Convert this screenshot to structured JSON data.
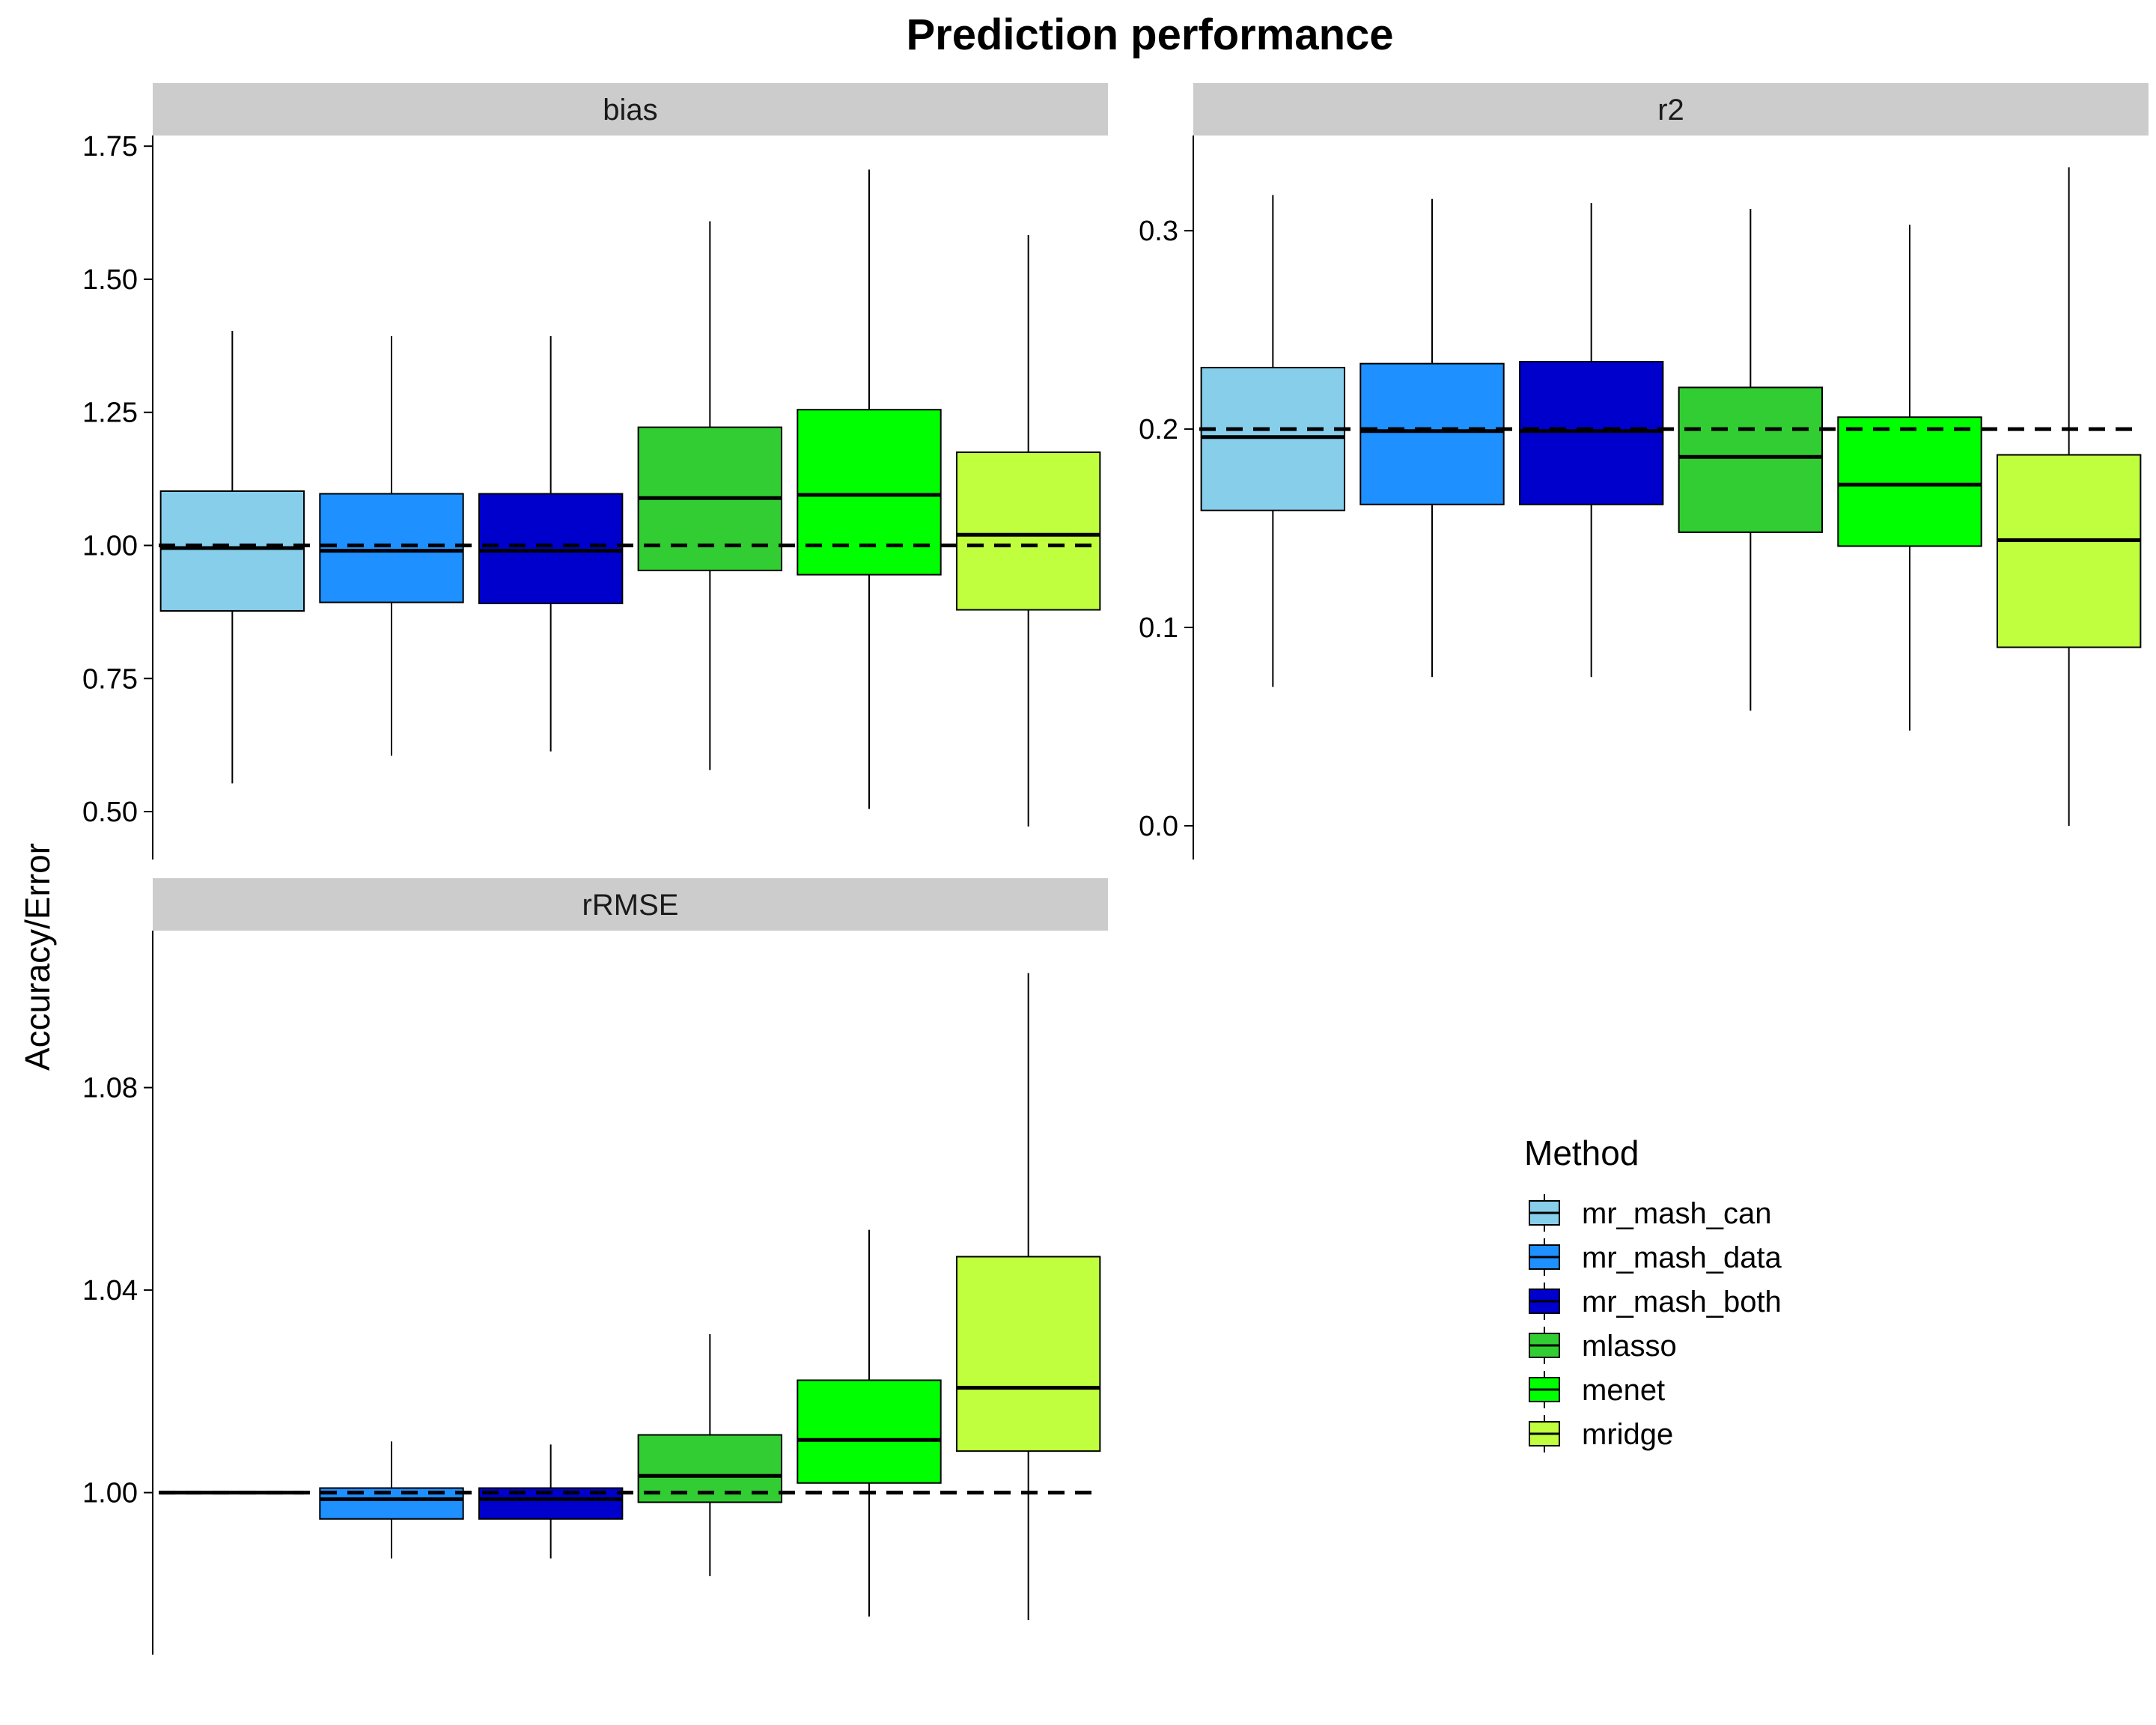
{
  "title": "Prediction performance",
  "ylabel": "Accuracy/Error",
  "legend": {
    "title": "Method"
  },
  "colors": {
    "mr_mash_can": "#87ceeb",
    "mr_mash_data": "#1e90ff",
    "mr_mash_both": "#0000cd",
    "mlasso": "#32cd32",
    "menet": "#00ff00",
    "mridge": "#c0ff3e",
    "strip": "#cccccc"
  },
  "chart_data": {
    "type": "boxplot",
    "methods": [
      "mr_mash_can",
      "mr_mash_data",
      "mr_mash_both",
      "mlasso",
      "menet",
      "mridge"
    ],
    "panels": [
      {
        "name": "bias",
        "reference_line": 1.0,
        "ylim": [
          0.41,
          1.77
        ],
        "yticks": [
          0.5,
          0.75,
          1.0,
          1.25,
          1.5,
          1.75
        ],
        "yticklabels": [
          "0.50",
          "0.75",
          "1.00",
          "1.25",
          "1.50",
          "1.75"
        ],
        "boxes": [
          {
            "method": "mr_mash_can",
            "lower_whisker": 0.553,
            "q1": 0.877,
            "median": 0.995,
            "q3": 1.102,
            "upper_whisker": 1.403
          },
          {
            "method": "mr_mash_data",
            "lower_whisker": 0.605,
            "q1": 0.893,
            "median": 0.99,
            "q3": 1.097,
            "upper_whisker": 1.393
          },
          {
            "method": "mr_mash_both",
            "lower_whisker": 0.613,
            "q1": 0.891,
            "median": 0.99,
            "q3": 1.097,
            "upper_whisker": 1.393
          },
          {
            "method": "mlasso",
            "lower_whisker": 0.578,
            "q1": 0.953,
            "median": 1.089,
            "q3": 1.222,
            "upper_whisker": 1.609
          },
          {
            "method": "menet",
            "lower_whisker": 0.505,
            "q1": 0.945,
            "median": 1.095,
            "q3": 1.255,
            "upper_whisker": 1.706
          },
          {
            "method": "mridge",
            "lower_whisker": 0.472,
            "q1": 0.879,
            "median": 1.02,
            "q3": 1.175,
            "upper_whisker": 1.583
          }
        ]
      },
      {
        "name": "r2",
        "reference_line": 0.2,
        "ylim": [
          -0.017,
          0.348
        ],
        "yticks": [
          0.0,
          0.1,
          0.2,
          0.3
        ],
        "yticklabels": [
          "0.0",
          "0.1",
          "0.2",
          "0.3"
        ],
        "boxes": [
          {
            "method": "mr_mash_can",
            "lower_whisker": 0.07,
            "q1": 0.159,
            "median": 0.196,
            "q3": 0.231,
            "upper_whisker": 0.318
          },
          {
            "method": "mr_mash_data",
            "lower_whisker": 0.075,
            "q1": 0.162,
            "median": 0.199,
            "q3": 0.233,
            "upper_whisker": 0.316
          },
          {
            "method": "mr_mash_both",
            "lower_whisker": 0.075,
            "q1": 0.162,
            "median": 0.199,
            "q3": 0.234,
            "upper_whisker": 0.314
          },
          {
            "method": "mlasso",
            "lower_whisker": 0.058,
            "q1": 0.148,
            "median": 0.186,
            "q3": 0.221,
            "upper_whisker": 0.311
          },
          {
            "method": "menet",
            "lower_whisker": 0.048,
            "q1": 0.141,
            "median": 0.172,
            "q3": 0.206,
            "upper_whisker": 0.303
          },
          {
            "method": "mridge",
            "lower_whisker": 0.0,
            "q1": 0.09,
            "median": 0.144,
            "q3": 0.187,
            "upper_whisker": 0.332
          }
        ]
      },
      {
        "name": "rRMSE",
        "reference_line": 1.0,
        "ylim": [
          0.968,
          1.111
        ],
        "yticks": [
          1.0,
          1.04,
          1.08
        ],
        "yticklabels": [
          "1.00",
          "1.04",
          "1.08"
        ],
        "boxes": [
          {
            "method": "mr_mash_can",
            "lower_whisker": 1.0,
            "q1": 1.0,
            "median": 1.0,
            "q3": 1.0,
            "upper_whisker": 1.0
          },
          {
            "method": "mr_mash_data",
            "lower_whisker": 0.987,
            "q1": 0.9948,
            "median": 0.9987,
            "q3": 1.0009,
            "upper_whisker": 1.0101
          },
          {
            "method": "mr_mash_both",
            "lower_whisker": 0.987,
            "q1": 0.9948,
            "median": 0.9987,
            "q3": 1.0009,
            "upper_whisker": 1.0095
          },
          {
            "method": "mlasso",
            "lower_whisker": 0.9835,
            "q1": 0.9981,
            "median": 1.0033,
            "q3": 1.0114,
            "upper_whisker": 1.0313
          },
          {
            "method": "menet",
            "lower_whisker": 0.9755,
            "q1": 1.0019,
            "median": 1.0104,
            "q3": 1.0222,
            "upper_whisker": 1.0519
          },
          {
            "method": "mridge",
            "lower_whisker": 0.9748,
            "q1": 1.0082,
            "median": 1.0207,
            "q3": 1.0466,
            "upper_whisker": 1.1026
          }
        ]
      }
    ]
  }
}
